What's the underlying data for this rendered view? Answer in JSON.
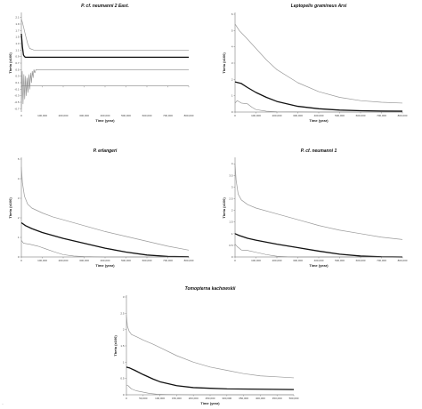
{
  "figure": {
    "stray_mark": "·"
  },
  "chart_data": [
    {
      "type": "line",
      "title": "P. cf. neumanni 2 East.",
      "xlabel": "Time (year)",
      "ylabel": "Theta (x100)",
      "xlim": [
        0,
        800000
      ],
      "ylim": [
        -0.8,
        2.2
      ],
      "x_ticks": [
        0,
        100000,
        200000,
        300000,
        400000,
        500000,
        600000,
        700000,
        800000
      ],
      "x_tick_labels": [
        "0",
        "100,000",
        "200,000",
        "300,000",
        "400,000",
        "500,000",
        "600,000",
        "700,000",
        "800,000"
      ],
      "y_ticks": [
        -0.7,
        -0.5,
        -0.3,
        -0.1,
        0.1,
        0.3,
        0.5,
        0.7,
        0.9,
        1.1,
        1.3,
        1.5,
        1.7,
        1.9,
        2.1
      ],
      "y_tick_labels": [
        "-0.7",
        "-0.5",
        "-0.3",
        "-0.1",
        "0.1",
        "0.3",
        "0.5",
        "0.7",
        "0.9",
        "1.1",
        "1.3",
        "1.5",
        "1.7",
        "1.9",
        "2.1"
      ],
      "series": [
        {
          "role": "upper",
          "color": "#9a9a9a",
          "width": 0.7,
          "x": [
            0,
            5000,
            10000,
            20000,
            30000,
            40000,
            60000,
            100000,
            200000,
            400000,
            600000,
            800000
          ],
          "y": [
            2.05,
            1.95,
            1.82,
            1.55,
            1.3,
            1.15,
            1.1,
            1.1,
            1.1,
            1.1,
            1.1,
            1.1
          ]
        },
        {
          "role": "median",
          "color": "#111111",
          "width": 1.3,
          "x": [
            0,
            5000,
            10000,
            15000,
            20000,
            30000,
            50000,
            100000,
            200000,
            400000,
            600000,
            800000
          ],
          "y": [
            1.6,
            1.2,
            0.95,
            0.9,
            0.88,
            0.88,
            0.88,
            0.88,
            0.88,
            0.88,
            0.88,
            0.88
          ]
        },
        {
          "role": "lower",
          "color": "#8a8a8a",
          "width": 0.6,
          "x": [
            0,
            4000,
            8000,
            12000,
            16000,
            20000,
            24000,
            28000,
            32000,
            36000,
            40000,
            44000,
            48000,
            52000,
            56000,
            60000,
            64000,
            70000,
            80000,
            100000,
            200000,
            400000,
            600000,
            800000
          ],
          "y": [
            -0.7,
            0.45,
            -0.55,
            0.35,
            -0.4,
            0.3,
            -0.3,
            0.25,
            -0.2,
            0.35,
            -0.1,
            0.4,
            0.1,
            0.45,
            0.25,
            0.5,
            0.4,
            0.5,
            0.5,
            0.5,
            0.5,
            0.5,
            0.5,
            0.5
          ]
        }
      ]
    },
    {
      "type": "line",
      "title": "Leptopelis gramineus Arsi",
      "xlabel": "Time (year)",
      "ylabel": "Theta (x100)",
      "xlim": [
        0,
        800000
      ],
      "ylim": [
        0,
        6
      ],
      "x_ticks": [
        0,
        100000,
        200000,
        300000,
        400000,
        500000,
        600000,
        700000,
        800000
      ],
      "x_tick_labels": [
        "0",
        "100,000",
        "200,000",
        "300,000",
        "400,000",
        "500,000",
        "600,000",
        "700,000",
        "800,000"
      ],
      "y_ticks": [
        0,
        1,
        2,
        3,
        4,
        5,
        6
      ],
      "y_tick_labels": [
        "0",
        "1",
        "2",
        "3",
        "4",
        "5",
        "6"
      ],
      "series": [
        {
          "role": "upper",
          "color": "#9a9a9a",
          "width": 0.7,
          "x": [
            0,
            20000,
            50000,
            100000,
            150000,
            200000,
            300000,
            400000,
            500000,
            600000,
            700000,
            800000
          ],
          "y": [
            5.4,
            5.0,
            4.6,
            3.9,
            3.2,
            2.6,
            1.8,
            1.25,
            0.9,
            0.7,
            0.6,
            0.55
          ]
        },
        {
          "role": "median",
          "color": "#111111",
          "width": 1.3,
          "x": [
            0,
            30000,
            60000,
            100000,
            150000,
            200000,
            300000,
            400000,
            500000,
            600000,
            700000,
            800000
          ],
          "y": [
            1.85,
            1.75,
            1.5,
            1.2,
            0.9,
            0.65,
            0.35,
            0.2,
            0.12,
            0.08,
            0.06,
            0.05
          ]
        },
        {
          "role": "lower",
          "color": "#8a8a8a",
          "width": 0.6,
          "x": [
            0,
            10000,
            30000,
            60000,
            80000,
            100000,
            150000,
            200000,
            300000,
            400000,
            600000,
            800000
          ],
          "y": [
            0.55,
            0.7,
            0.55,
            0.5,
            0.3,
            0.15,
            0.05,
            0.02,
            0.01,
            0,
            0,
            0
          ]
        }
      ]
    },
    {
      "type": "line",
      "title": "P. erlangeri",
      "xlabel": "Time (year)",
      "ylabel": "Theta (x100)",
      "xlim": [
        0,
        800000
      ],
      "ylim": [
        0,
        5
      ],
      "x_ticks": [
        0,
        100000,
        200000,
        300000,
        400000,
        500000,
        600000,
        700000,
        800000
      ],
      "x_tick_labels": [
        "0",
        "100,000",
        "200,000",
        "300,000",
        "400,000",
        "500,000",
        "600,000",
        "700,000",
        "800,000"
      ],
      "y_ticks": [
        0,
        1,
        2,
        3,
        4,
        5
      ],
      "y_tick_labels": [
        "0",
        "1",
        "2",
        "3",
        "4",
        "5"
      ],
      "series": [
        {
          "role": "upper",
          "color": "#9a9a9a",
          "width": 0.7,
          "x": [
            0,
            5000,
            15000,
            30000,
            50000,
            100000,
            150000,
            200000,
            300000,
            400000,
            500000,
            600000,
            700000,
            800000
          ],
          "y": [
            4.6,
            3.8,
            3.1,
            2.7,
            2.5,
            2.25,
            2.05,
            1.9,
            1.6,
            1.3,
            1.05,
            0.8,
            0.55,
            0.35
          ]
        },
        {
          "role": "median",
          "color": "#111111",
          "width": 1.3,
          "x": [
            0,
            20000,
            50000,
            100000,
            200000,
            300000,
            400000,
            500000,
            600000,
            700000,
            800000
          ],
          "y": [
            1.75,
            1.6,
            1.45,
            1.25,
            0.95,
            0.7,
            0.45,
            0.25,
            0.1,
            0.03,
            0.01
          ]
        },
        {
          "role": "lower",
          "color": "#8a8a8a",
          "width": 0.6,
          "x": [
            0,
            10000,
            40000,
            80000,
            120000,
            160000,
            200000,
            250000,
            300000,
            400000,
            600000,
            800000
          ],
          "y": [
            0.85,
            0.7,
            0.65,
            0.55,
            0.4,
            0.25,
            0.12,
            0.05,
            0.02,
            0,
            0,
            0
          ]
        }
      ]
    },
    {
      "type": "line",
      "title": "P. cf. neumanni 1",
      "xlabel": "Time (year)",
      "ylabel": "Theta (x100)",
      "xlim": [
        0,
        800000
      ],
      "ylim": [
        0,
        4.2
      ],
      "x_ticks": [
        0,
        100000,
        200000,
        300000,
        400000,
        500000,
        600000,
        700000,
        800000
      ],
      "x_tick_labels": [
        "0",
        "100,000",
        "200,000",
        "300,000",
        "400,000",
        "500,000",
        "600,000",
        "700,000",
        "800,000"
      ],
      "y_ticks": [
        0,
        0.5,
        1,
        1.5,
        2,
        2.5,
        3,
        3.5,
        4
      ],
      "y_tick_labels": [
        "0",
        "0.5",
        "1",
        "1.5",
        "2",
        "2.5",
        "3",
        "3.5",
        "4"
      ],
      "series": [
        {
          "role": "upper",
          "color": "#9a9a9a",
          "width": 0.7,
          "x": [
            0,
            5000,
            15000,
            30000,
            60000,
            100000,
            200000,
            300000,
            400000,
            500000,
            600000,
            700000,
            800000
          ],
          "y": [
            4.0,
            3.3,
            2.7,
            2.45,
            2.25,
            2.1,
            1.85,
            1.6,
            1.35,
            1.15,
            1.0,
            0.85,
            0.75
          ]
        },
        {
          "role": "median",
          "color": "#111111",
          "width": 1.3,
          "x": [
            0,
            20000,
            60000,
            100000,
            200000,
            300000,
            400000,
            500000,
            600000,
            700000,
            800000
          ],
          "y": [
            1.0,
            0.92,
            0.8,
            0.72,
            0.55,
            0.4,
            0.25,
            0.12,
            0.04,
            0.01,
            0
          ]
        },
        {
          "role": "lower",
          "color": "#8a8a8a",
          "width": 0.6,
          "x": [
            0,
            10000,
            30000,
            60000,
            100000,
            150000,
            200000,
            250000,
            300000,
            400000,
            600000,
            800000
          ],
          "y": [
            0.55,
            0.45,
            0.3,
            0.28,
            0.2,
            0.1,
            0.03,
            0.01,
            0,
            0,
            0,
            0
          ]
        }
      ]
    },
    {
      "type": "line",
      "title": "Tomopterna kachowskii",
      "xlabel": "Time (year)",
      "ylabel": "Theta (x100)",
      "xlim": [
        0,
        500000
      ],
      "ylim": [
        0,
        3
      ],
      "x_ticks": [
        0,
        50000,
        100000,
        150000,
        200000,
        250000,
        300000,
        350000,
        400000,
        450000,
        500000
      ],
      "x_tick_labels": [
        "0",
        "50,000",
        "100,000",
        "150,000",
        "200,000",
        "250,000",
        "300,000",
        "350,000",
        "400,000",
        "450,000",
        "500,000"
      ],
      "y_ticks": [
        0,
        0.5,
        1,
        1.5,
        2,
        2.5,
        3
      ],
      "y_tick_labels": [
        "0",
        "0.5",
        "1",
        "1.5",
        "2",
        "2.5",
        "3"
      ],
      "series": [
        {
          "role": "upper",
          "color": "#9a9a9a",
          "width": 0.7,
          "x": [
            0,
            3000,
            8000,
            15000,
            30000,
            50000,
            80000,
            100000,
            150000,
            200000,
            250000,
            300000,
            350000,
            400000,
            450000,
            500000
          ],
          "y": [
            2.45,
            2.1,
            1.95,
            1.85,
            1.78,
            1.68,
            1.55,
            1.45,
            1.2,
            1.0,
            0.85,
            0.75,
            0.65,
            0.58,
            0.55,
            0.52
          ]
        },
        {
          "role": "median",
          "color": "#111111",
          "width": 1.3,
          "x": [
            0,
            10000,
            25000,
            50000,
            80000,
            100000,
            150000,
            200000,
            250000,
            300000,
            400000,
            500000
          ],
          "y": [
            0.85,
            0.82,
            0.75,
            0.62,
            0.48,
            0.4,
            0.28,
            0.22,
            0.2,
            0.18,
            0.17,
            0.16
          ]
        },
        {
          "role": "lower",
          "color": "#8a8a8a",
          "width": 0.6,
          "x": [
            0,
            5000,
            15000,
            30000,
            50000,
            70000,
            90000,
            120000,
            200000,
            300000,
            500000
          ],
          "y": [
            0.3,
            0.28,
            0.18,
            0.12,
            0.08,
            0.04,
            0.02,
            0.01,
            0,
            0,
            0
          ]
        }
      ]
    }
  ]
}
